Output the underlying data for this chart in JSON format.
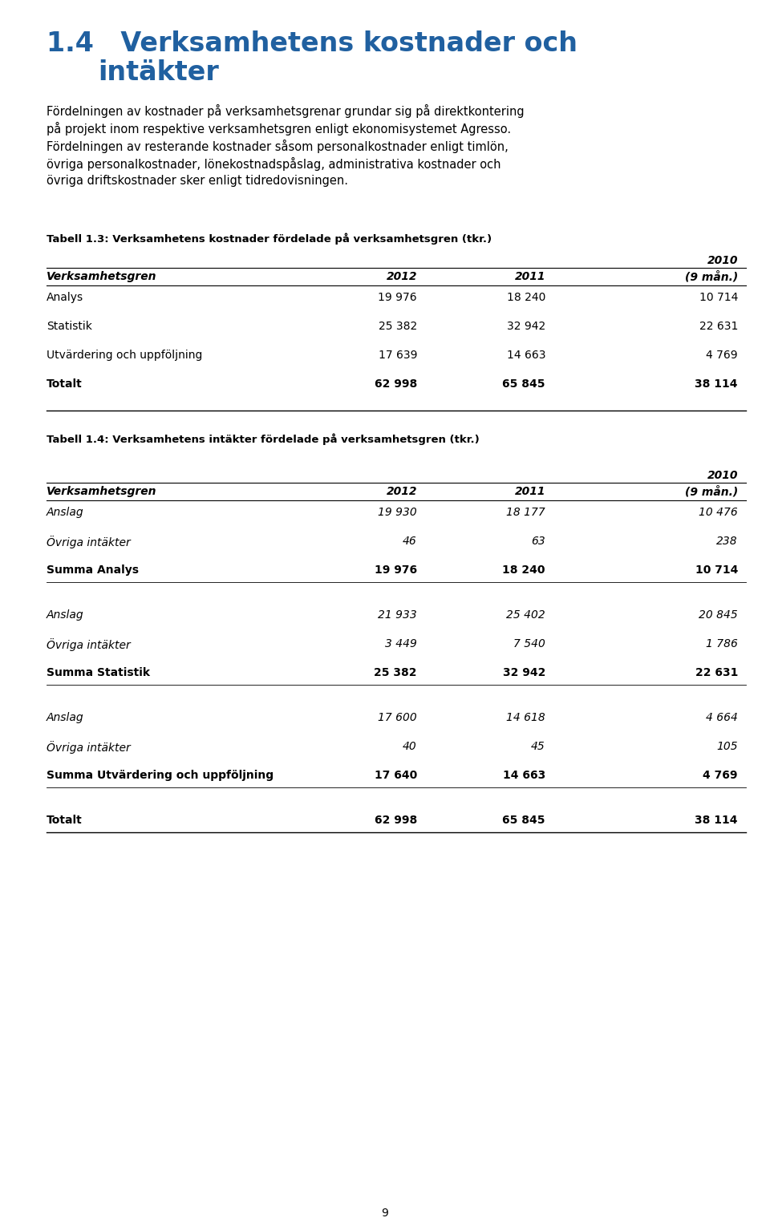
{
  "title_number": "1.4",
  "title_text": "Verksamhetens kostnader och\nintäkter",
  "title_color": "#2060a0",
  "body_para1": "Fördelningen av kostnader på verksamhetsgrenar grundar sig på direktkontering\npå projekt inom respektive verksamhetsgren enligt ekonomisystemet Agresso.",
  "body_para2": "Fördelningen av resterande kostnader såsom personalkostnader enligt timlön,\növriga personalkostnader, lönekostnadspåslag, administrativa kostnader och\növriga driftskostnader sker enligt tidredovisningen.",
  "table1_caption": "Tabell 1.3: Verksamhetens kostnader fördelade på verksamhetsgren (tkr.)",
  "table2_caption": "Tabell 1.4: Verksamhetens intäkter fördelade på verksamhetsgren (tkr.)",
  "col_header_row2": [
    "Verksamhetsgren",
    "2012",
    "2011",
    "(9 mån.)"
  ],
  "table1_rows": [
    {
      "label": "Analys",
      "v2012": "19 976",
      "v2011": "18 240",
      "v2010": "10 714",
      "bold": false
    },
    {
      "label": "Statistik",
      "v2012": "25 382",
      "v2011": "32 942",
      "v2010": "22 631",
      "bold": false
    },
    {
      "label": "Utvärdering och uppföljning",
      "v2012": "17 639",
      "v2011": "14 663",
      "v2010": "4 769",
      "bold": false
    },
    {
      "label": "Totalt",
      "v2012": "62 998",
      "v2011": "65 845",
      "v2010": "38 114",
      "bold": true
    }
  ],
  "table2_rows": [
    {
      "label": "Anslag",
      "v2012": "19 930",
      "v2011": "18 177",
      "v2010": "10 476",
      "bold": false,
      "italic": true,
      "spacer_after": false
    },
    {
      "label": "Övriga intäkter",
      "v2012": "46",
      "v2011": "63",
      "v2010": "238",
      "bold": false,
      "italic": true,
      "spacer_after": false
    },
    {
      "label": "Summa Analys",
      "v2012": "19 976",
      "v2011": "18 240",
      "v2010": "10 714",
      "bold": true,
      "italic": false,
      "spacer_after": true
    },
    {
      "label": "Anslag",
      "v2012": "21 933",
      "v2011": "25 402",
      "v2010": "20 845",
      "bold": false,
      "italic": true,
      "spacer_after": false
    },
    {
      "label": "Övriga intäkter",
      "v2012": "3 449",
      "v2011": "7 540",
      "v2010": "1 786",
      "bold": false,
      "italic": true,
      "spacer_after": false
    },
    {
      "label": "Summa Statistik",
      "v2012": "25 382",
      "v2011": "32 942",
      "v2010": "22 631",
      "bold": true,
      "italic": false,
      "spacer_after": true
    },
    {
      "label": "Anslag",
      "v2012": "17 600",
      "v2011": "14 618",
      "v2010": "4 664",
      "bold": false,
      "italic": true,
      "spacer_after": false
    },
    {
      "label": "Övriga intäkter",
      "v2012": "40",
      "v2011": "45",
      "v2010": "105",
      "bold": false,
      "italic": true,
      "spacer_after": false
    },
    {
      "label": "Summa Utvärdering och uppföljning",
      "v2012": "17 640",
      "v2011": "14 663",
      "v2010": "4 769",
      "bold": true,
      "italic": false,
      "spacer_after": true
    },
    {
      "label": "Totalt",
      "v2012": "62 998",
      "v2011": "65 845",
      "v2010": "38 114",
      "bold": true,
      "italic": false,
      "spacer_after": false
    }
  ],
  "page_number": "9",
  "background_color": "#ffffff",
  "text_color": "#000000"
}
